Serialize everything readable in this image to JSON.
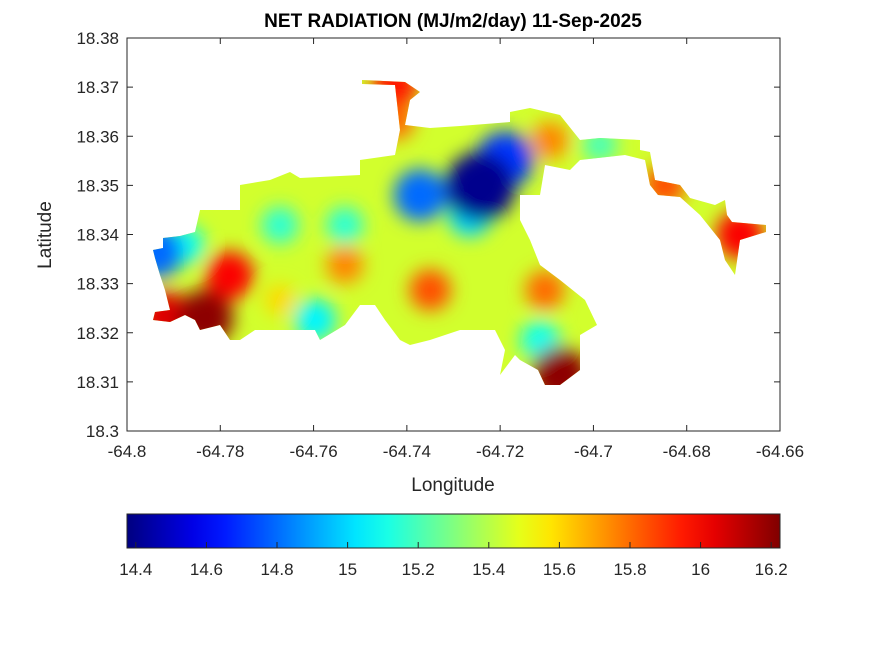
{
  "chart_data": {
    "type": "heatmap",
    "title": "NET RADIATION (MJ/m2/day) 11-Sep-2025",
    "xlabel": "Longitude",
    "ylabel": "Latitude",
    "xlim": [
      -64.8,
      -64.66
    ],
    "ylim": [
      18.3,
      18.38
    ],
    "xticks": [
      "-64.8",
      "-64.78",
      "-64.76",
      "-64.74",
      "-64.72",
      "-64.7",
      "-64.68",
      "-64.66"
    ],
    "yticks": [
      "18.3",
      "18.31",
      "18.32",
      "18.33",
      "18.34",
      "18.35",
      "18.36",
      "18.37",
      "18.38"
    ],
    "colormap": "jet",
    "colorbar": {
      "location": "south",
      "clim": [
        14.375,
        16.225
      ],
      "ticks": [
        "14.4",
        "14.6",
        "14.8",
        "15",
        "15.2",
        "15.4",
        "15.6",
        "15.8",
        "16",
        "16.2"
      ]
    },
    "background_value": 15.45,
    "points": [
      {
        "lon": -64.7243,
        "lat": 18.3497,
        "value": 14.4
      },
      {
        "lon": -64.719,
        "lat": 18.3552,
        "value": 14.7
      },
      {
        "lon": -64.7372,
        "lat": 18.348,
        "value": 14.8
      },
      {
        "lon": -64.7265,
        "lat": 18.344,
        "value": 15.0
      },
      {
        "lon": -64.7833,
        "lat": 18.323,
        "value": 16.2
      },
      {
        "lon": -64.778,
        "lat": 18.3317,
        "value": 16.0
      },
      {
        "lon": -64.7919,
        "lat": 18.3234,
        "value": 16.05
      },
      {
        "lon": -64.7072,
        "lat": 18.3114,
        "value": 16.2
      },
      {
        "lon": -64.7425,
        "lat": 18.3633,
        "value": 15.8
      },
      {
        "lon": -64.7425,
        "lat": 18.3704,
        "value": 15.95
      },
      {
        "lon": -64.6686,
        "lat": 18.3399,
        "value": 16.0
      },
      {
        "lon": -64.735,
        "lat": 18.3287,
        "value": 15.85
      },
      {
        "lon": -64.7533,
        "lat": 18.3338,
        "value": 15.75
      },
      {
        "lon": -64.7104,
        "lat": 18.3287,
        "value": 15.8
      },
      {
        "lon": -64.7597,
        "lat": 18.3226,
        "value": 15.05
      },
      {
        "lon": -64.7533,
        "lat": 18.3419,
        "value": 15.15
      },
      {
        "lon": -64.7672,
        "lat": 18.3419,
        "value": 15.15
      },
      {
        "lon": -64.7114,
        "lat": 18.3185,
        "value": 15.1
      },
      {
        "lon": -64.7093,
        "lat": 18.3592,
        "value": 15.75
      },
      {
        "lon": -64.7876,
        "lat": 18.3379,
        "value": 15.1
      },
      {
        "lon": -64.7936,
        "lat": 18.3364,
        "value": 14.8
      },
      {
        "lon": -64.6986,
        "lat": 18.3582,
        "value": 15.2
      },
      {
        "lon": -64.6847,
        "lat": 18.35,
        "value": 15.85
      },
      {
        "lon": -64.7672,
        "lat": 18.3267,
        "value": 15.6
      }
    ]
  }
}
